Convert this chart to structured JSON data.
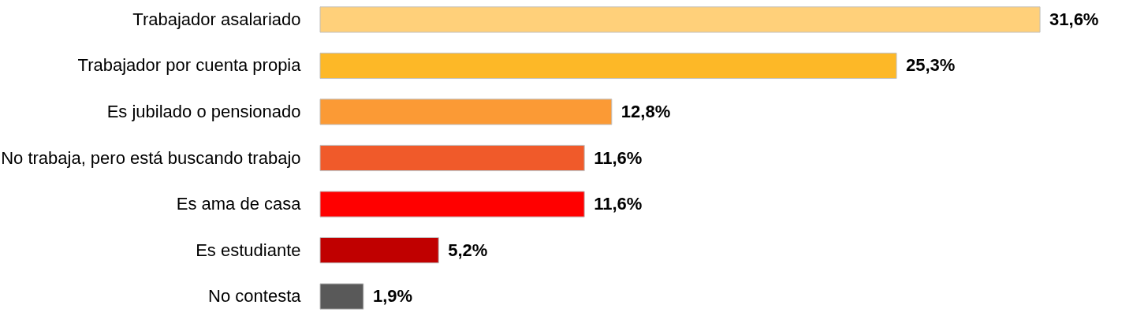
{
  "chart_data": {
    "type": "bar",
    "orientation": "horizontal",
    "categories": [
      "Trabajador asalariado",
      "Trabajador por cuenta propia",
      "Es jubilado o pensionado",
      "No trabaja, pero está buscando trabajo",
      "Es ama de casa",
      "Es estudiante",
      "No contesta"
    ],
    "values": [
      31.6,
      25.3,
      12.8,
      11.6,
      11.6,
      5.2,
      1.9
    ],
    "value_labels": [
      "31,6%",
      "25,3%",
      "12,8%",
      "11,6%",
      "11,6%",
      "5,2%",
      "1,9%"
    ],
    "colors": [
      "#ffd07a",
      "#fdb827",
      "#fb9a35",
      "#f05a2a",
      "#ff0000",
      "#c00000",
      "#595959"
    ],
    "grid": false
  }
}
